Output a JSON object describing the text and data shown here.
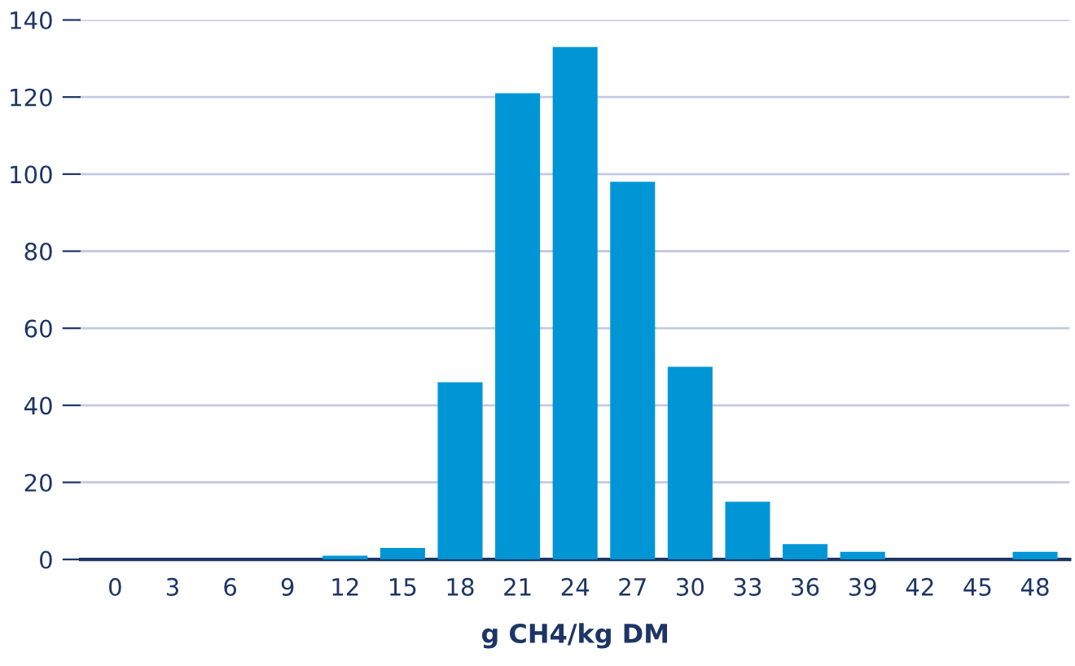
{
  "chart_data": {
    "type": "bar",
    "xlabel": "g CH4/kg DM",
    "categories": [
      "0",
      "3",
      "6",
      "9",
      "12",
      "15",
      "18",
      "21",
      "24",
      "27",
      "30",
      "33",
      "36",
      "39",
      "42",
      "45",
      "48"
    ],
    "values": [
      0,
      0,
      0,
      0,
      1,
      3,
      46,
      121,
      133,
      98,
      50,
      15,
      4,
      2,
      0,
      0,
      2
    ],
    "color": "#0096d6",
    "ylim": [
      0,
      140
    ],
    "yticks": [
      0,
      20,
      40,
      60,
      80,
      100,
      120,
      140
    ],
    "grid": "y"
  }
}
